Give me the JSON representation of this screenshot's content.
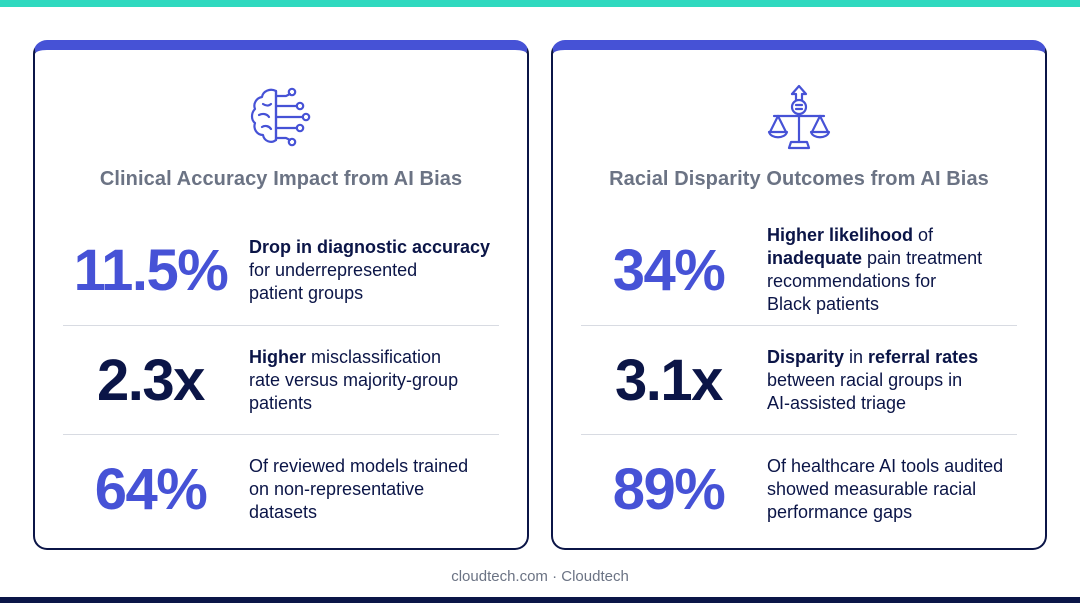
{
  "colors": {
    "accent": "#4652d6",
    "navy": "#0b1547",
    "teal": "#2fd9bf",
    "muted_text": "#6b7384",
    "divider": "#d8dbe2"
  },
  "left_card": {
    "icon": "brain-circuit-icon",
    "title": "Clinical Accuracy Impact from AI Bias",
    "stats": [
      {
        "value": "11.5%",
        "lines": [
          [
            {
              "text": "Drop in diagnostic accuracy",
              "bold": true
            }
          ],
          [
            {
              "text": "for underrepresented",
              "bold": false
            }
          ],
          [
            {
              "text": "patient groups",
              "bold": false
            }
          ]
        ]
      },
      {
        "value": "2.3x",
        "lines": [
          [
            {
              "text": "Higher",
              "bold": true
            },
            {
              "text": " misclassification",
              "bold": false
            }
          ],
          [
            {
              "text": "rate versus majority-group",
              "bold": false
            }
          ],
          [
            {
              "text": "patients",
              "bold": false
            }
          ]
        ]
      },
      {
        "value": "64%",
        "lines": [
          [
            {
              "text": "Of reviewed models trained",
              "bold": false
            }
          ],
          [
            {
              "text": "on non-representative",
              "bold": false
            }
          ],
          [
            {
              "text": "datasets",
              "bold": false
            }
          ]
        ]
      }
    ]
  },
  "right_card": {
    "icon": "scales-of-justice-icon",
    "title": "Racial Disparity Outcomes from AI Bias",
    "stats": [
      {
        "value": "34%",
        "lines": [
          [
            {
              "text": "Higher likelihood",
              "bold": true
            },
            {
              "text": " of",
              "bold": false
            }
          ],
          [
            {
              "text": "inadequate",
              "bold": true
            },
            {
              "text": " pain treatment",
              "bold": false
            }
          ],
          [
            {
              "text": "recommendations for",
              "bold": false
            }
          ],
          [
            {
              "text": "Black patients",
              "bold": false
            }
          ]
        ]
      },
      {
        "value": "3.1x",
        "lines": [
          [
            {
              "text": "Disparity",
              "bold": true
            },
            {
              "text": " in ",
              "bold": false
            },
            {
              "text": "referral rates",
              "bold": true
            }
          ],
          [
            {
              "text": "between racial groups in",
              "bold": false
            }
          ],
          [
            {
              "text": "AI-assisted triage",
              "bold": false
            }
          ]
        ]
      },
      {
        "value": "89%",
        "lines": [
          [
            {
              "text": "Of healthcare AI tools audited",
              "bold": false
            }
          ],
          [
            {
              "text": "showed measurable racial",
              "bold": false
            }
          ],
          [
            {
              "text": "performance gaps",
              "bold": false
            }
          ]
        ]
      }
    ]
  },
  "footer": {
    "text": "cloudtech.com · Cloudtech"
  }
}
